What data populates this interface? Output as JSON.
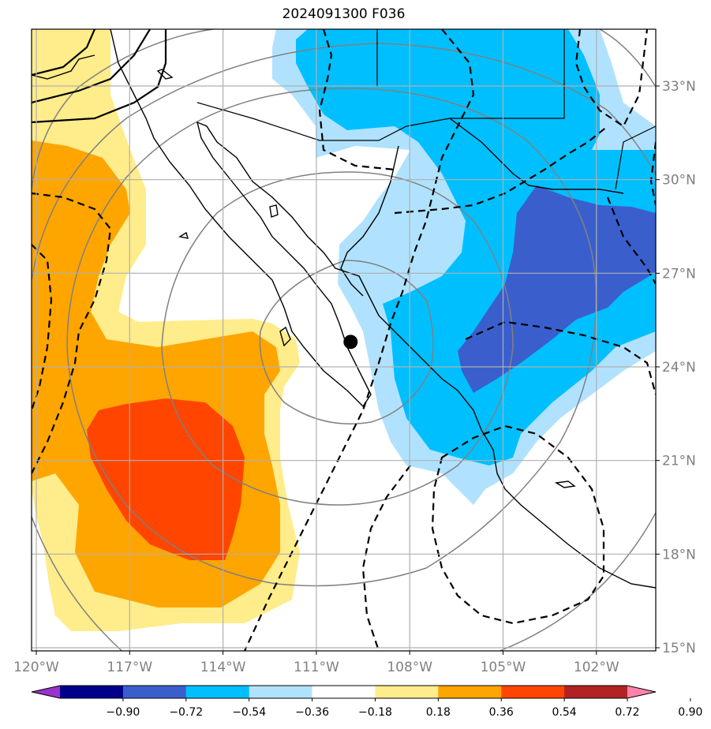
{
  "title": "2024091300 F036",
  "lon_labels": [
    "120°W",
    "117°W",
    "114°W",
    "111°W",
    "108°W",
    "105°W",
    "102°W"
  ],
  "lat_labels": [
    "33°N",
    "30°N",
    "27°N",
    "24°N",
    "21°N",
    "18°N",
    "15°N"
  ],
  "lon_values": [
    -120,
    -117,
    -114,
    -111,
    -108,
    -105,
    -102
  ],
  "lat_values": [
    33,
    30,
    27,
    24,
    21,
    18,
    15
  ],
  "marker": {
    "lon": -109.9,
    "lat": 24.8
  },
  "colorbar": {
    "labels": [
      "−0.90",
      "−0.72",
      "−0.54",
      "−0.36",
      "−0.18",
      "0.18",
      "0.36",
      "0.54",
      "0.72",
      "0.90"
    ],
    "colors": [
      "#9932cc",
      "#00008b",
      "#3a5fcd",
      "#00bfff",
      "#b0e2ff",
      "#ffffff",
      "#ffec8b",
      "#ffa500",
      "#ff4500",
      "#b22222",
      "#ff82ab"
    ]
  },
  "fill_colors": {
    "yellow": "#ffec8b",
    "orange": "#ffa500",
    "red": "#ff4500",
    "lightblue": "#b0e2ff",
    "blue": "#00bfff",
    "darkblue": "#3a5fcd"
  }
}
